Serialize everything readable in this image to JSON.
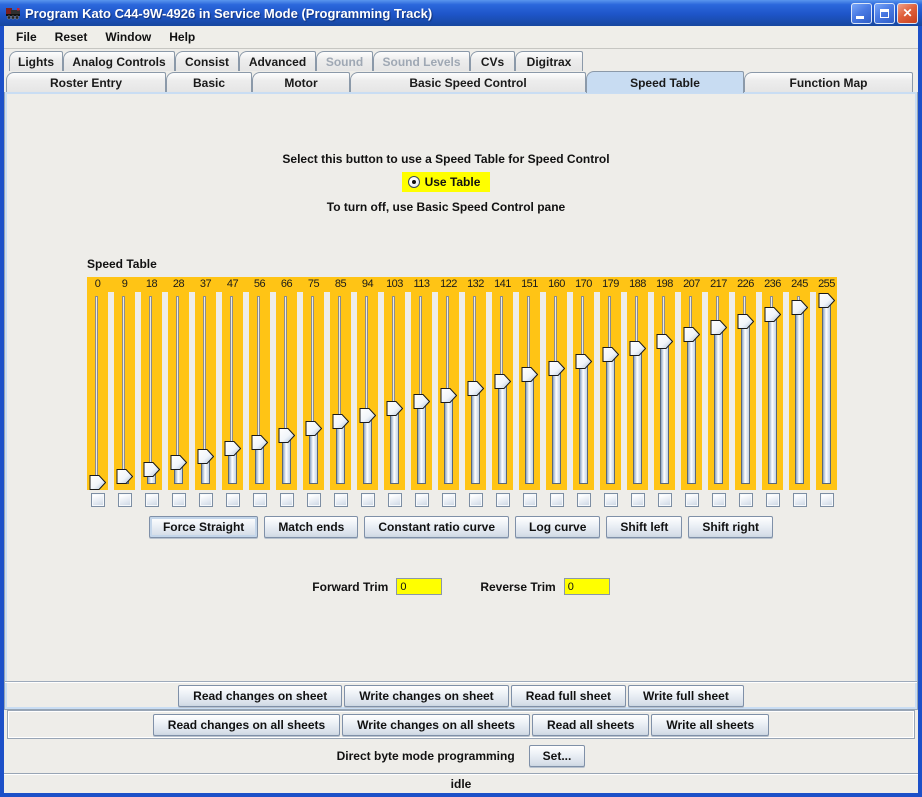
{
  "window": {
    "title": "Program Kato C44-9W-4926 in Service Mode (Programming Track)",
    "controls": {
      "minimize": "minimize",
      "maximize": "maximize",
      "close": "close"
    }
  },
  "menu": {
    "items": [
      "File",
      "Reset",
      "Window",
      "Help"
    ]
  },
  "tabs": {
    "row1": [
      {
        "label": "Lights",
        "disabled": false
      },
      {
        "label": "Analog Controls",
        "disabled": false
      },
      {
        "label": "Consist",
        "disabled": false
      },
      {
        "label": "Advanced",
        "disabled": false
      },
      {
        "label": "Sound",
        "disabled": true
      },
      {
        "label": "Sound Levels",
        "disabled": true
      },
      {
        "label": "CVs",
        "disabled": false
      },
      {
        "label": "Digitrax",
        "disabled": false
      }
    ],
    "row2": [
      {
        "label": "Roster Entry",
        "selected": false
      },
      {
        "label": "Basic",
        "selected": false
      },
      {
        "label": "Motor",
        "selected": false
      },
      {
        "label": "Basic Speed Control",
        "selected": false
      },
      {
        "label": "Speed Table",
        "selected": true
      },
      {
        "label": "Function Map",
        "selected": false
      }
    ]
  },
  "speed_pane": {
    "instruction_top": "Select this button to use a Speed Table for Speed Control",
    "radio_label": "Use Table",
    "radio_selected": true,
    "instruction_bottom": "To turn off, use Basic Speed Control pane",
    "table_title": "Speed Table",
    "slider_values": [
      0,
      9,
      18,
      28,
      37,
      47,
      56,
      66,
      75,
      85,
      94,
      103,
      113,
      122,
      132,
      141,
      151,
      160,
      170,
      179,
      188,
      198,
      207,
      217,
      226,
      236,
      245,
      255
    ],
    "slider_max": 255,
    "checkboxes_checked": false,
    "tool_buttons": [
      {
        "label": "Force Straight",
        "focused": true
      },
      {
        "label": "Match ends",
        "focused": false
      },
      {
        "label": "Constant ratio curve",
        "focused": false
      },
      {
        "label": "Log curve",
        "focused": false
      },
      {
        "label": "Shift left",
        "focused": false
      },
      {
        "label": "Shift right",
        "focused": false
      }
    ],
    "forward_trim_label": "Forward Trim",
    "forward_trim_value": "0",
    "reverse_trim_label": "Reverse Trim",
    "reverse_trim_value": "0"
  },
  "bottom": {
    "sheet_buttons": [
      "Read changes on sheet",
      "Write changes on sheet",
      "Read full sheet",
      "Write full sheet"
    ],
    "all_sheet_buttons": [
      "Read changes on all sheets",
      "Write changes on all sheets",
      "Read all sheets",
      "Write all sheets"
    ],
    "direct_byte_label": "Direct byte mode programming",
    "set_button": "Set...",
    "status": "idle"
  },
  "colors": {
    "slider_track": "#FFC415",
    "highlight_yellow": "#FFFF00",
    "selected_tab": "#C8DCF2",
    "titlebar_blue": "#1E55C8",
    "window_border": "#1C50C8"
  }
}
